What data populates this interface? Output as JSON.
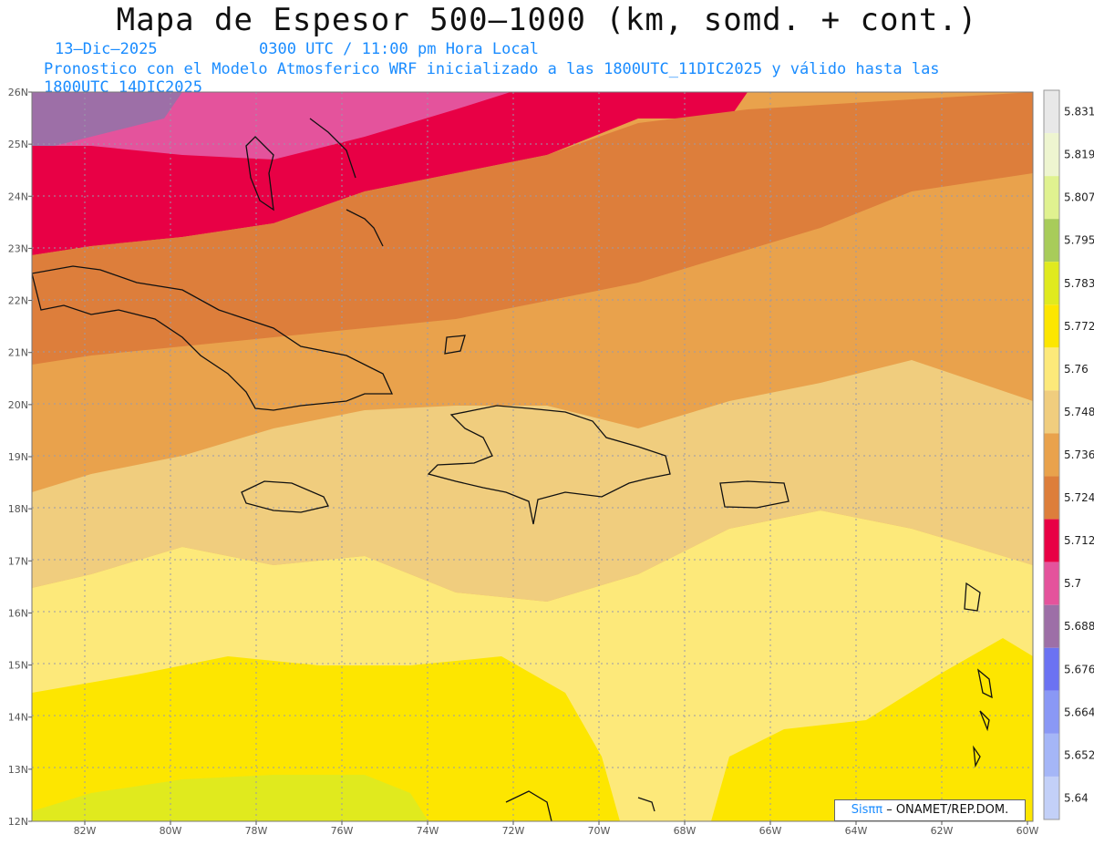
{
  "title": "Mapa de Espesor 500—1000 (km, somd. + cont.)",
  "date": "13—Dic—2025",
  "time": "0300 UTC / 11:00 pm Hora Local",
  "model_line": "Pronostico con el Modelo Atmosferico WRF inicializado a las 1800UTC_11DIC2025 y válido hasta las  1800UTC_14DIC2025",
  "credit": {
    "sis": "Sisππ",
    "rest": " – ONAMET/REP.DOM."
  },
  "lat_labels": [
    "26N",
    "25N",
    "24N",
    "23N",
    "22N",
    "21N",
    "20N",
    "19N",
    "18N",
    "17N",
    "16N",
    "15N",
    "14N",
    "13N",
    "12N"
  ],
  "lon_labels": [
    "82W",
    "80W",
    "78W",
    "76W",
    "74W",
    "72W",
    "70W",
    "68W",
    "66W",
    "64W",
    "62W",
    "60W"
  ],
  "colorbar": {
    "labels": [
      "5.831",
      "5.819",
      "5.807",
      "5.795",
      "5.783",
      "5.772",
      "5.76",
      "5.748",
      "5.736",
      "5.724",
      "5.712",
      "5.7",
      "5.688",
      "5.676",
      "5.664",
      "5.652",
      "5.64"
    ],
    "colors": [
      "#e8e8e8",
      "#eef5d0",
      "#e0f290",
      "#a8cc5a",
      "#e0ea1e",
      "#fde600",
      "#fde97a",
      "#f0cd7e",
      "#e9a24c",
      "#dd7e3b",
      "#e80045",
      "#e4539c",
      "#9d6fa7",
      "#6b72f2",
      "#8a98f5",
      "#a5b6f7",
      "#c3d0f8"
    ]
  }
}
